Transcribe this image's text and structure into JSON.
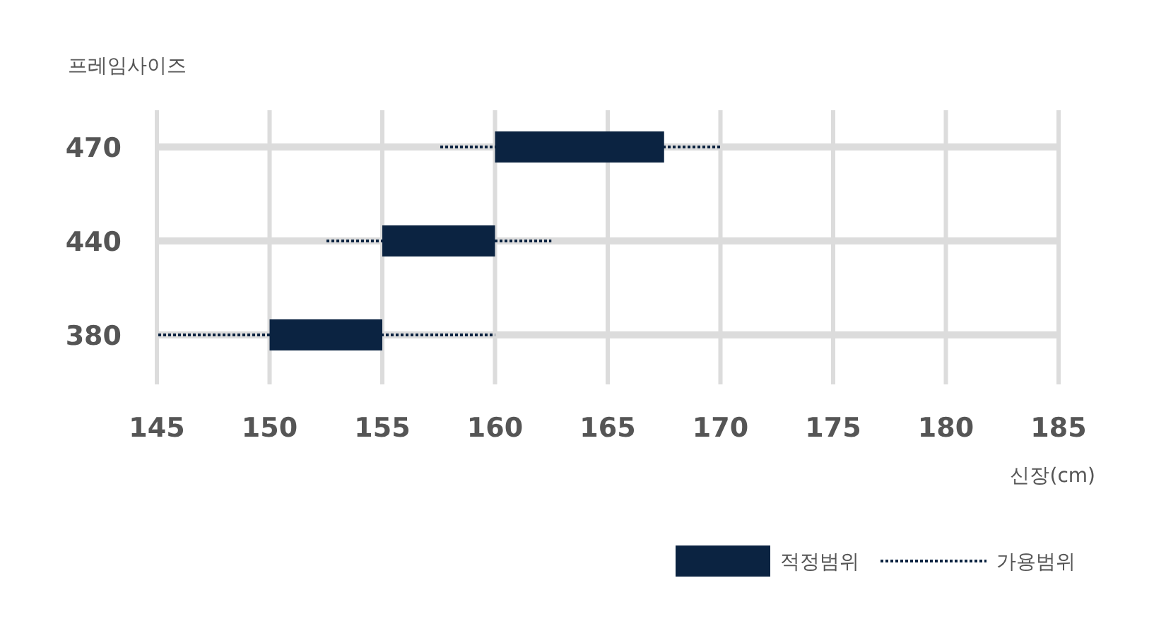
{
  "chart_data": {
    "type": "bar",
    "orientation": "horizontal",
    "ylabel": "프레임사이즈",
    "xlabel": "신장(cm)",
    "categories": [
      "470",
      "440",
      "380"
    ],
    "xlim": [
      145,
      185
    ],
    "xticks": [
      145,
      150,
      155,
      160,
      165,
      170,
      175,
      180,
      185
    ],
    "grid": true,
    "legend": "bottom right",
    "series": [
      {
        "name": "가용범위",
        "color": "#0b2341",
        "line_style": "dotted",
        "base": [
          157.5,
          152.5,
          145
        ],
        "values": [
          12.5,
          10,
          15
        ]
      },
      {
        "name": "적정범위",
        "color": "#0b2341",
        "base": [
          160,
          155,
          150
        ],
        "values": [
          7.5,
          5,
          5
        ]
      }
    ]
  }
}
